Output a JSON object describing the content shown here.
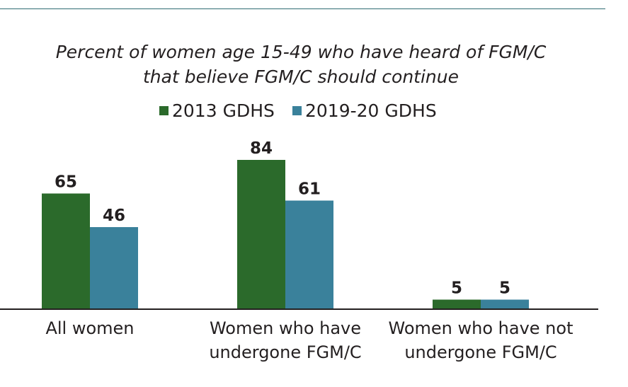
{
  "chart_data": {
    "type": "bar",
    "title": "Percent of women age 15-49 who have heard of FGM/C that believe FGM/C should continue",
    "title_lines": [
      "Percent of women age 15-49 who have heard of FGM/C",
      "that believe FGM/C should continue"
    ],
    "categories": [
      "All women",
      "Women who have undergone FGM/C",
      "Women who have not undergone FGM/C"
    ],
    "category_lines": [
      [
        "All women"
      ],
      [
        "Women who have",
        "undergone FGM/C"
      ],
      [
        "Women who have not",
        "undergone FGM/C"
      ]
    ],
    "series": [
      {
        "name": "2013 GDHS",
        "color": "#2b6a2b",
        "values": [
          65,
          84,
          5
        ]
      },
      {
        "name": "2019-20 GDHS",
        "color": "#3a819b",
        "values": [
          46,
          61,
          5
        ]
      }
    ],
    "ylim": [
      0,
      100
    ],
    "legend_position": "top-center",
    "grid": false,
    "data_labels": true
  }
}
